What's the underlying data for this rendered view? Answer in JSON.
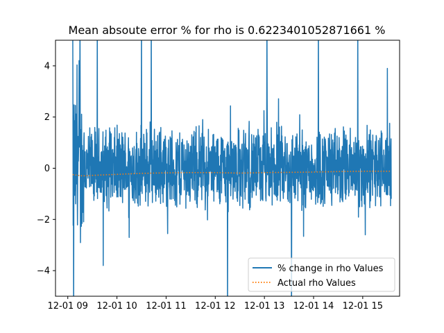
{
  "chart_data": {
    "type": "line",
    "title": "Mean absoute error % for rho is 0.6223401052871661 %",
    "xlabel": "",
    "ylabel": "",
    "x_tick_labels": [
      "12-01 09",
      "12-01 10",
      "12-01 11",
      "12-01 12",
      "12-01 13",
      "12-01 14",
      "12-01 15"
    ],
    "x_range_hours": [
      8.75,
      15.75
    ],
    "y_ticks": [
      -4,
      -2,
      0,
      2,
      4
    ],
    "y_tick_labels": [
      "−4",
      "−2",
      "0",
      "2",
      "4"
    ],
    "ylim": [
      -5,
      5
    ],
    "grid": false,
    "legend_position": "lower-right",
    "series": [
      {
        "name": "% change in rho Values",
        "color": "#1f77b4",
        "style": "solid",
        "x_start_hour": 9.1,
        "x_end_hour": 15.58,
        "center": 0,
        "typical_amplitude": 1.4,
        "spikes": [
          {
            "x": 9.05,
            "y": 6
          },
          {
            "x": 9.12,
            "y": -6
          },
          {
            "x": 9.25,
            "y": 6
          },
          {
            "x": 9.6,
            "y": 6
          },
          {
            "x": 9.72,
            "y": -3.8
          },
          {
            "x": 10.5,
            "y": 6
          },
          {
            "x": 10.7,
            "y": 6
          },
          {
            "x": 12.25,
            "y": -6
          },
          {
            "x": 13.05,
            "y": 6
          },
          {
            "x": 13.55,
            "y": -6
          },
          {
            "x": 14.1,
            "y": 6
          },
          {
            "x": 14.9,
            "y": 6
          },
          {
            "x": 15.05,
            "y": -2.6
          },
          {
            "x": 15.5,
            "y": 3.9
          }
        ]
      },
      {
        "name": "Actual rho Values",
        "color": "#ff7f0e",
        "style": "dotted",
        "points": [
          {
            "x": 9.1,
            "y": -0.25
          },
          {
            "x": 9.3,
            "y": -0.3
          },
          {
            "x": 9.6,
            "y": -0.27
          },
          {
            "x": 10.0,
            "y": -0.24
          },
          {
            "x": 10.5,
            "y": -0.2
          },
          {
            "x": 11.0,
            "y": -0.18
          },
          {
            "x": 11.5,
            "y": -0.17
          },
          {
            "x": 12.0,
            "y": -0.17
          },
          {
            "x": 12.5,
            "y": -0.19
          },
          {
            "x": 13.0,
            "y": -0.17
          },
          {
            "x": 13.5,
            "y": -0.16
          },
          {
            "x": 14.0,
            "y": -0.15
          },
          {
            "x": 14.5,
            "y": -0.13
          },
          {
            "x": 15.0,
            "y": -0.12
          },
          {
            "x": 15.58,
            "y": -0.12
          }
        ]
      }
    ]
  }
}
